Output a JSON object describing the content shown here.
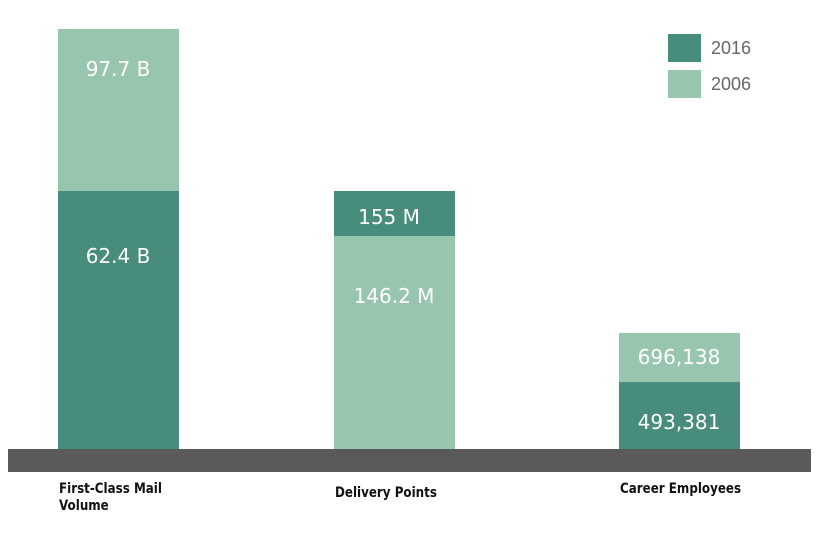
{
  "chart_data": {
    "type": "bar",
    "categories": [
      "First-Class Mail Volume",
      "Delivery Points",
      "Career Employees"
    ],
    "series": [
      {
        "name": "2016",
        "color": "#478c7c",
        "labels": [
          "62.4 B",
          "155 M",
          "493,381"
        ]
      },
      {
        "name": "2006",
        "color": "#97c5ad",
        "labels": [
          "97.7 B",
          "146.2 M",
          "696,138"
        ]
      }
    ]
  },
  "categories_display": [
    [
      "First-Class Mail",
      "Volume"
    ],
    [
      "Delivery Points"
    ],
    [
      "Career Employees"
    ]
  ],
  "colors": {
    "baseline": "#5a5a5a"
  }
}
